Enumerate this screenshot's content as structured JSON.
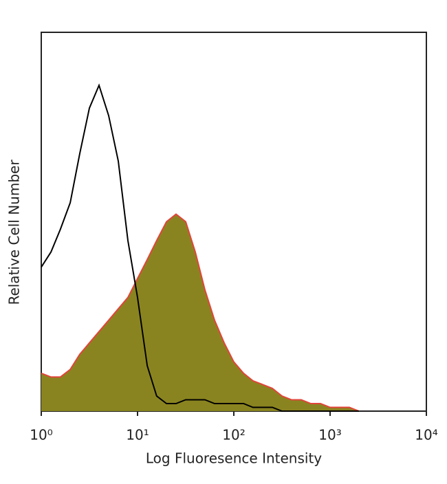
{
  "chart_data": {
    "type": "histogram-overlay",
    "xlabel": "Log Fluoresence Intensity",
    "ylabel": "Relative Cell Number",
    "xscale": "log",
    "xlim": [
      1,
      10000
    ],
    "xticks": [
      {
        "value": 1,
        "label": "10⁰"
      },
      {
        "value": 10,
        "label": "10¹"
      },
      {
        "value": 100,
        "label": "10²"
      },
      {
        "value": 1000,
        "label": "10³"
      },
      {
        "value": 10000,
        "label": "10⁴"
      }
    ],
    "ylim": [
      0,
      100
    ],
    "x": [
      1,
      1.26,
      1.58,
      2,
      2.51,
      3.16,
      3.98,
      5.01,
      6.31,
      7.94,
      10,
      12.6,
      15.8,
      20,
      25.1,
      31.6,
      39.8,
      50.1,
      63.1,
      79.4,
      100,
      126,
      158,
      200,
      251,
      316,
      398,
      501,
      631,
      794,
      1000,
      1259,
      1585,
      1995
    ],
    "series": [
      {
        "color": "#8a8420",
        "edge_color": "#e0453a",
        "filled": true,
        "values": [
          10,
          9,
          9,
          11,
          15,
          18,
          21,
          24,
          27,
          30,
          35,
          40,
          45,
          50,
          52,
          50,
          42,
          32,
          24,
          18,
          13,
          10,
          8,
          7,
          6,
          4,
          3,
          3,
          2,
          2,
          1,
          1,
          1,
          0
        ]
      },
      {
        "color": "#000000",
        "filled": false,
        "values": [
          38,
          42,
          48,
          55,
          68,
          80,
          86,
          78,
          66,
          45,
          30,
          12,
          4,
          2,
          2,
          3,
          3,
          3,
          2,
          2,
          2,
          2,
          1,
          1,
          1,
          0,
          0,
          0,
          0,
          0,
          0,
          0,
          0,
          0
        ]
      }
    ]
  }
}
